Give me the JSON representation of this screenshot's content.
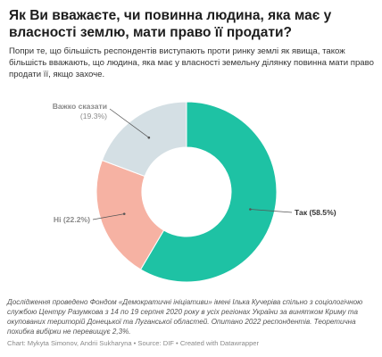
{
  "header": {
    "title": "Як Ви вважаєте, чи повинна людина, яка має у власності землю, мати право її продати?",
    "subtitle": "Попри те, що більшість респондентів виступають проти ринку землі як явища, також більшість вважають, що людина, яка має у власності земельну ділянку повинна мати право продати її, якщо захоче."
  },
  "chart_data": {
    "type": "pie",
    "donut": true,
    "title": "Як Ви вважаєте, чи повинна людина, яка має у власності землю, мати право її продати?",
    "slices": [
      {
        "label": "Так",
        "value": 58.5,
        "label_text": "Так (58.5%)",
        "color": "#1ec2a4"
      },
      {
        "label": "Ні",
        "value": 22.2,
        "label_text": "Ні (22.2%)",
        "color": "#f6b2a3"
      },
      {
        "label": "Важко сказати",
        "value": 19.3,
        "label_text_name": "Важко сказати",
        "label_text_value": "(19.3%)",
        "color": "#d4dfe4"
      }
    ]
  },
  "footer": {
    "notes": "Дослідження проведено Фондом «Демократичні ініціативи» імені Ількa Кучеріва спільно з соціологічною службою Центру Разумкова з 14 по 19 серпня 2020 року в усіх регіонах України за винятком Криму та окупованих територій Донецької та Луганської областей. Опитано 2022 респондентів. Теоретична похибка вибірки не перевищує 2,3%.",
    "credit": "Chart: Mykyta Simonov, Andrii Sukharyna • Source: DIF • Created with Datawrapper"
  }
}
